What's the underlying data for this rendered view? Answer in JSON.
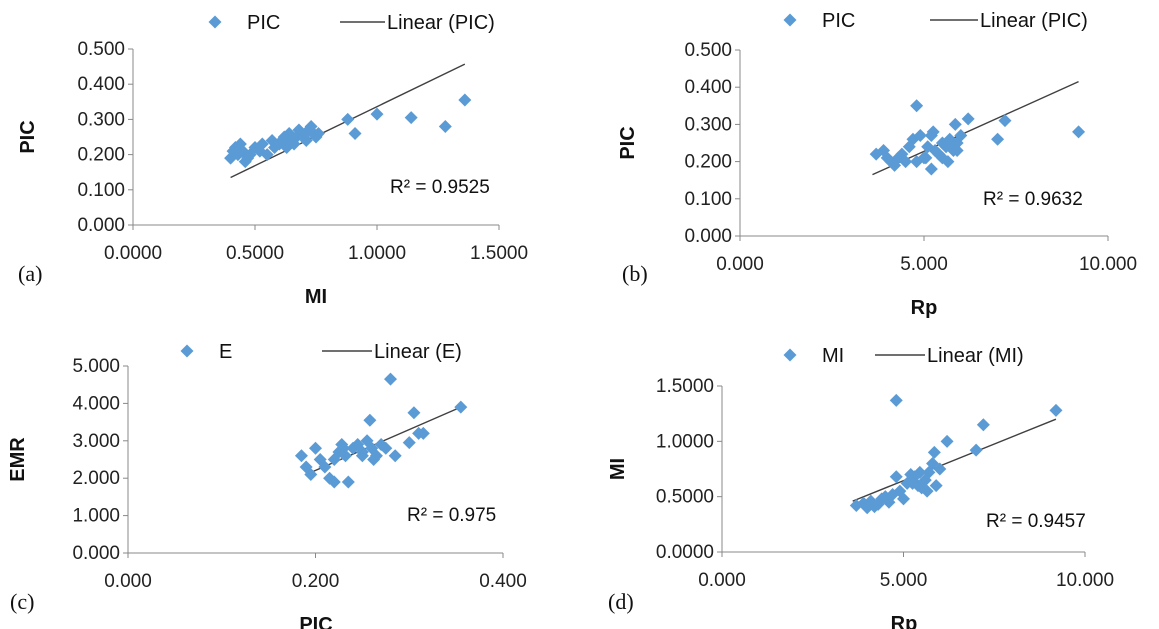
{
  "colors": {
    "marker": "#5b9bd5",
    "trendline": "#404040",
    "axis": "#888888"
  },
  "chart_data": [
    {
      "panel": "(a)",
      "type": "scatter",
      "xlabel": "MI",
      "ylabel": "PIC",
      "xlim": [
        0,
        1.5
      ],
      "ylim": [
        0,
        0.5
      ],
      "xticks": [
        "0.0000",
        "0.5000",
        "1.0000",
        "1.5000"
      ],
      "yticks": [
        "0.000",
        "0.100",
        "0.200",
        "0.300",
        "0.400",
        "0.500"
      ],
      "legend": {
        "series": "PIC",
        "trend": "Linear (PIC)"
      },
      "r2": "R² = 0.9525",
      "trendline": {
        "x": [
          0.4,
          1.36
        ],
        "y": [
          0.135,
          0.457
        ]
      },
      "series": [
        {
          "name": "PIC",
          "x": [
            0.4,
            0.42,
            0.43,
            0.44,
            0.45,
            0.47,
            0.48,
            0.5,
            0.52,
            0.55,
            0.57,
            0.58,
            0.6,
            0.62,
            0.63,
            0.64,
            0.65,
            0.66,
            0.67,
            0.68,
            0.69,
            0.7,
            0.71,
            0.72,
            0.73,
            0.74,
            0.75,
            0.76,
            0.88,
            0.91,
            1.0,
            1.14,
            1.28,
            1.36,
            0.41,
            0.46,
            0.53,
            0.61
          ],
          "y": [
            0.19,
            0.22,
            0.2,
            0.23,
            0.21,
            0.19,
            0.2,
            0.22,
            0.21,
            0.2,
            0.24,
            0.22,
            0.23,
            0.25,
            0.22,
            0.26,
            0.24,
            0.23,
            0.25,
            0.27,
            0.26,
            0.25,
            0.24,
            0.27,
            0.28,
            0.26,
            0.25,
            0.26,
            0.3,
            0.26,
            0.315,
            0.305,
            0.28,
            0.355,
            0.21,
            0.18,
            0.23,
            0.24
          ]
        }
      ]
    },
    {
      "panel": "(b)",
      "type": "scatter",
      "xlabel": "Rp",
      "ylabel": "PIC",
      "xlim": [
        0,
        10
      ],
      "ylim": [
        0,
        0.5
      ],
      "xticks": [
        "0.000",
        "5.000",
        "10.000"
      ],
      "yticks": [
        "0.000",
        "0.100",
        "0.200",
        "0.300",
        "0.400",
        "0.500"
      ],
      "legend": {
        "series": "PIC",
        "trend": "Linear (PIC)"
      },
      "r2": "R² = 0.9632",
      "trendline": {
        "x": [
          3.6,
          9.2
        ],
        "y": [
          0.165,
          0.415
        ]
      },
      "series": [
        {
          "name": "PIC",
          "x": [
            3.7,
            3.9,
            4.0,
            4.1,
            4.2,
            4.3,
            4.5,
            4.6,
            4.7,
            4.8,
            4.9,
            5.0,
            5.1,
            5.2,
            5.25,
            5.3,
            5.4,
            5.5,
            5.6,
            5.65,
            5.7,
            5.8,
            5.85,
            5.9,
            6.0,
            6.2,
            7.0,
            7.2,
            9.2,
            4.8,
            5.2,
            5.5,
            5.75,
            4.4,
            5.05,
            5.9
          ],
          "y": [
            0.22,
            0.23,
            0.21,
            0.2,
            0.19,
            0.21,
            0.2,
            0.24,
            0.26,
            0.35,
            0.27,
            0.21,
            0.24,
            0.18,
            0.28,
            0.23,
            0.22,
            0.25,
            0.24,
            0.2,
            0.26,
            0.23,
            0.3,
            0.25,
            0.27,
            0.315,
            0.26,
            0.31,
            0.28,
            0.2,
            0.27,
            0.21,
            0.25,
            0.22,
            0.21,
            0.23
          ]
        }
      ]
    },
    {
      "panel": "(c)",
      "type": "scatter",
      "xlabel": "PIC",
      "ylabel": "EMR",
      "xlim": [
        0,
        0.4
      ],
      "ylim": [
        0,
        5
      ],
      "xticks": [
        "0.000",
        "0.200",
        "0.400"
      ],
      "yticks": [
        "0.000",
        "1.000",
        "2.000",
        "3.000",
        "4.000",
        "5.000"
      ],
      "legend": {
        "series": "E",
        "trend": "Linear (E)"
      },
      "r2": "R² = 0.975",
      "trendline": {
        "x": [
          0.19,
          0.355
        ],
        "y": [
          2.1,
          3.9
        ]
      },
      "series": [
        {
          "name": "E",
          "x": [
            0.185,
            0.19,
            0.195,
            0.2,
            0.205,
            0.21,
            0.215,
            0.22,
            0.225,
            0.228,
            0.232,
            0.235,
            0.24,
            0.245,
            0.25,
            0.255,
            0.258,
            0.262,
            0.265,
            0.27,
            0.275,
            0.28,
            0.285,
            0.3,
            0.305,
            0.31,
            0.315,
            0.355,
            0.26,
            0.22,
            0.23,
            0.25
          ],
          "y": [
            2.6,
            2.3,
            2.1,
            2.8,
            2.5,
            2.3,
            2.0,
            1.9,
            2.7,
            2.9,
            2.6,
            1.9,
            2.8,
            2.9,
            2.7,
            3.0,
            3.55,
            2.5,
            2.6,
            2.9,
            2.8,
            4.65,
            2.6,
            2.95,
            3.75,
            3.2,
            3.2,
            3.9,
            2.8,
            2.5,
            2.8,
            2.6
          ]
        }
      ]
    },
    {
      "panel": "(d)",
      "type": "scatter",
      "xlabel": "Rp",
      "ylabel": "MI",
      "xlim": [
        0,
        10
      ],
      "ylim": [
        0,
        1.5
      ],
      "xticks": [
        "0.000",
        "5.000",
        "10.000"
      ],
      "yticks": [
        "0.0000",
        "0.5000",
        "1.0000",
        "1.5000"
      ],
      "legend": {
        "series": "MI",
        "trend": "Linear (MI)"
      },
      "r2": "R² = 0.9457",
      "trendline": {
        "x": [
          3.6,
          9.2
        ],
        "y": [
          0.46,
          1.2
        ]
      },
      "series": [
        {
          "name": "MI",
          "x": [
            3.7,
            3.9,
            4.0,
            4.1,
            4.2,
            4.3,
            4.4,
            4.5,
            4.6,
            4.7,
            4.8,
            4.9,
            5.0,
            5.1,
            5.2,
            5.3,
            5.4,
            5.5,
            5.6,
            5.65,
            5.7,
            5.8,
            5.85,
            6.0,
            6.2,
            7.0,
            7.2,
            9.2,
            4.8,
            5.25,
            5.45,
            5.9
          ],
          "y": [
            0.42,
            0.44,
            0.4,
            0.46,
            0.41,
            0.43,
            0.48,
            0.5,
            0.45,
            0.52,
            1.37,
            0.55,
            0.48,
            0.62,
            0.7,
            0.68,
            0.6,
            0.58,
            0.65,
            0.55,
            0.72,
            0.8,
            0.9,
            0.75,
            1.0,
            0.92,
            1.15,
            1.28,
            0.68,
            0.62,
            0.72,
            0.6
          ]
        }
      ]
    }
  ]
}
